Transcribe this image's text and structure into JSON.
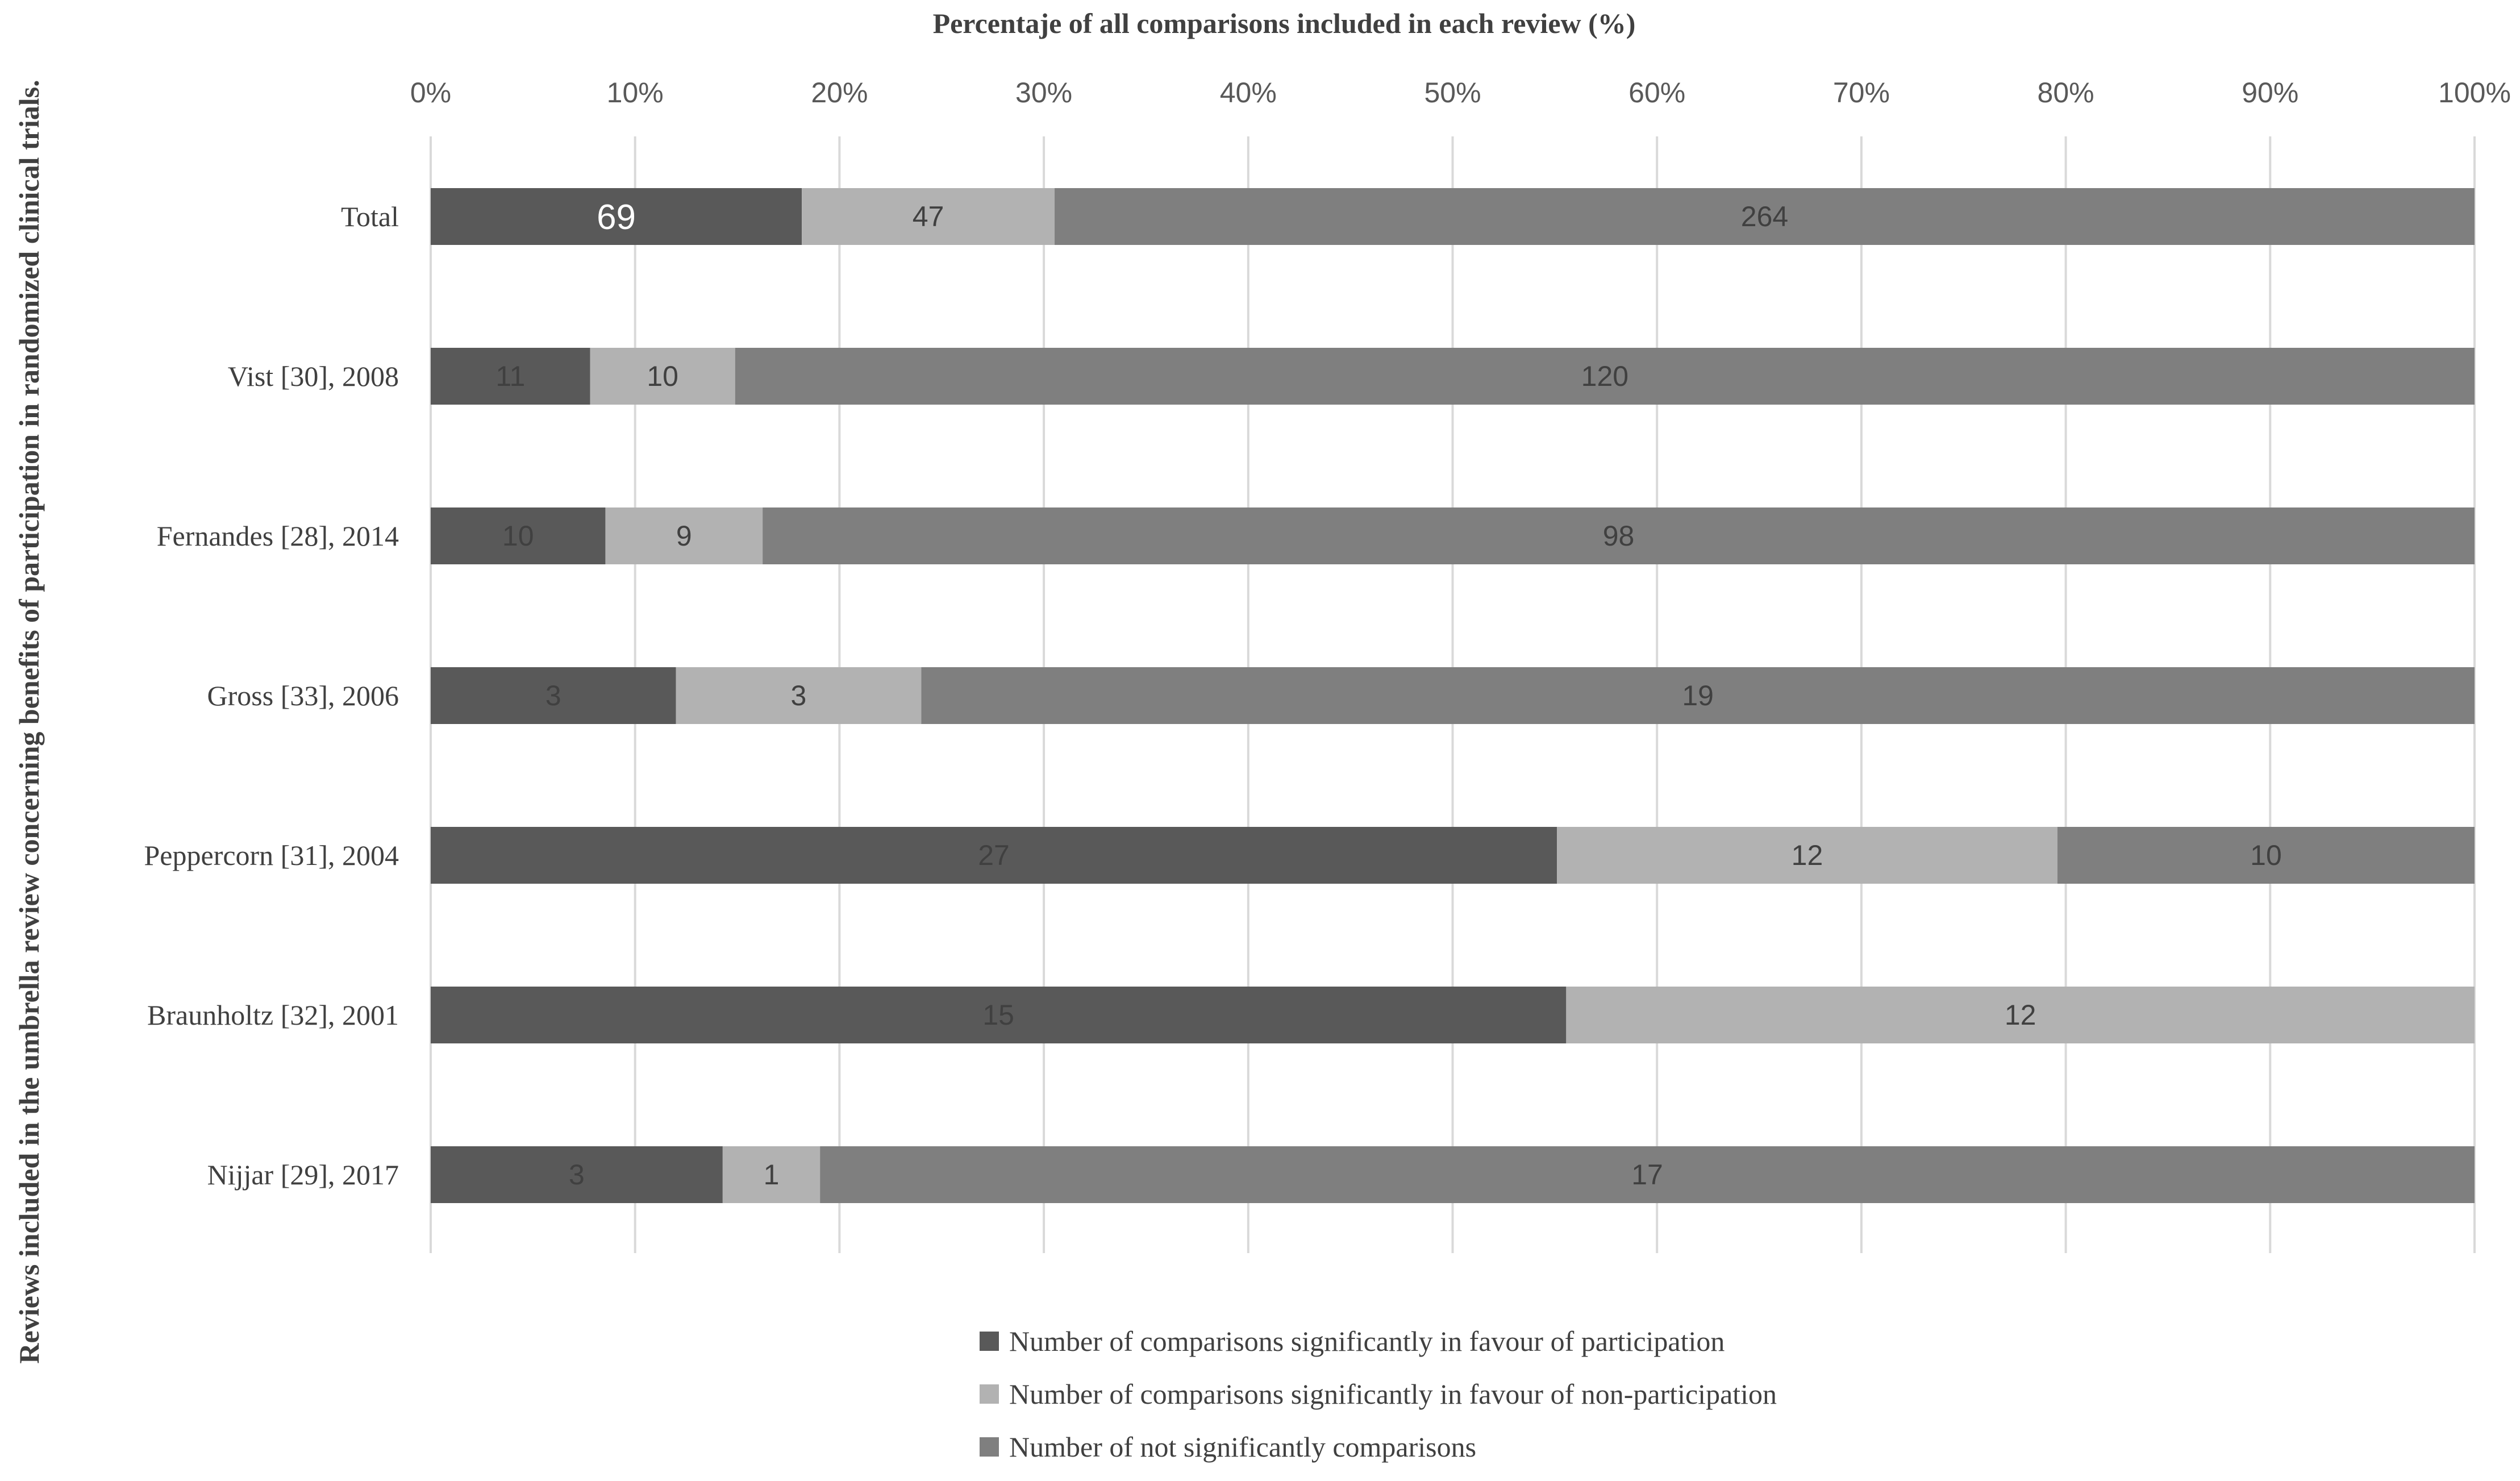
{
  "chart_data": {
    "type": "bar",
    "orientation": "horizontal",
    "stacked": "percent",
    "title": "Percentaje of all comparisons included in each review (%)",
    "xlabel": "Percentaje of all comparisons included in each review (%)",
    "ylabel": "Reviews included in the umbrella review concerning benefits of participation in randomized clinical trials.",
    "xlim": [
      0,
      100
    ],
    "x_ticks": [
      "0%",
      "10%",
      "20%",
      "30%",
      "40%",
      "50%",
      "60%",
      "70%",
      "80%",
      "90%",
      "100%"
    ],
    "grid": true,
    "legend_position": "bottom",
    "categories": [
      "Total",
      "Vist [30], 2008",
      "Fernandes [28], 2014",
      "Gross [33], 2006",
      "Peppercorn [31], 2004",
      "Braunholtz [32], 2001",
      "Nijjar [29], 2017"
    ],
    "series": [
      {
        "name": "Number of comparisons significantly in favour of participation",
        "color": "#595959",
        "values": [
          69,
          11,
          10,
          3,
          27,
          15,
          3
        ]
      },
      {
        "name": "Number of comparisons significantly in favour of non-participation",
        "color": "#b2b2b2",
        "values": [
          47,
          10,
          9,
          3,
          12,
          12,
          1
        ]
      },
      {
        "name": "Number of not significantly comparisons",
        "color": "#7f7f7f",
        "values": [
          264,
          120,
          98,
          19,
          10,
          0,
          17
        ]
      }
    ]
  }
}
